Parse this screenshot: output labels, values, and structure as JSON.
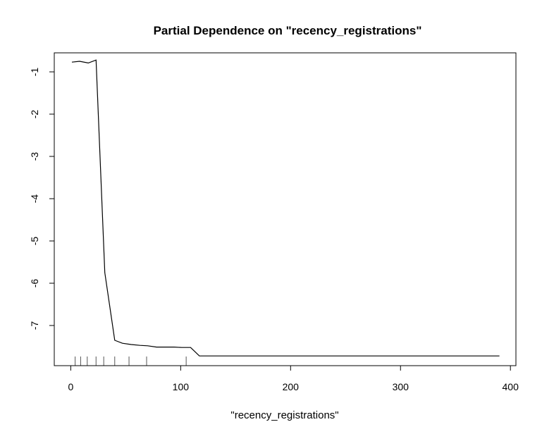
{
  "chart_data": {
    "type": "line",
    "title": "Partial Dependence on \"recency_registrations\"",
    "xlabel": "\"recency_registrations\"",
    "ylabel": "",
    "xlim": [
      -15,
      405
    ],
    "ylim": [
      -7.95,
      -0.55
    ],
    "x_ticks": [
      0,
      100,
      200,
      300,
      400
    ],
    "x_tick_labels": [
      "0",
      "100",
      "200",
      "300",
      "400"
    ],
    "y_ticks": [
      -1,
      -2,
      -3,
      -4,
      -5,
      -6,
      -7
    ],
    "y_tick_labels": [
      "-1",
      "-2",
      "-3",
      "-4",
      "-5",
      "-6",
      "-7"
    ],
    "grid": false,
    "series": [
      {
        "x": [
          1,
          8,
          16,
          23,
          31,
          40,
          47,
          55,
          63,
          70,
          78,
          86,
          94,
          101,
          109,
          117,
          390
        ],
        "y": [
          -0.77,
          -0.75,
          -0.79,
          -0.72,
          -5.75,
          -7.35,
          -7.42,
          -7.45,
          -7.47,
          -7.48,
          -7.51,
          -7.51,
          -7.51,
          -7.52,
          -7.52,
          -7.72,
          -7.72
        ]
      }
    ],
    "rug_x": [
      4,
      9,
      15,
      23,
      30,
      40,
      53,
      69,
      105
    ]
  }
}
